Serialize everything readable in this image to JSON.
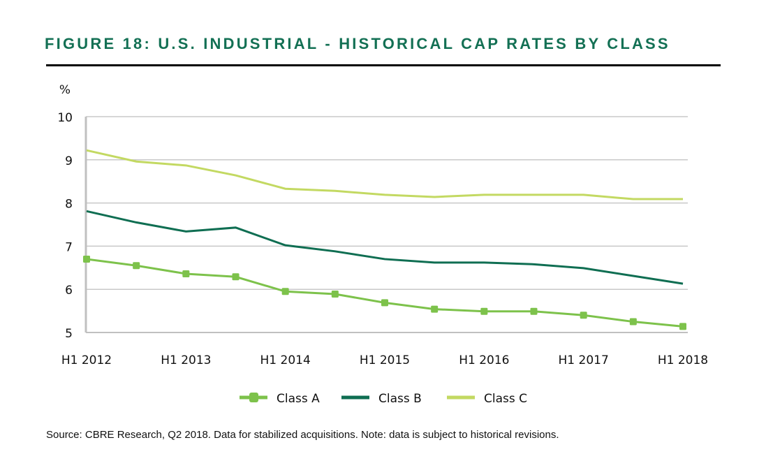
{
  "chart_data": {
    "type": "line",
    "title": "FIGURE 18: U.S. INDUSTRIAL - HISTORICAL CAP RATES BY CLASS",
    "ylabel": "%",
    "xlabel": "",
    "ylim": [
      5,
      10
    ],
    "yticks": [
      "5",
      "6",
      "7",
      "8",
      "9",
      "10"
    ],
    "grid": true,
    "legend": "bottom",
    "x": [
      "H1 2012",
      "H2 2012",
      "H1 2013",
      "H2 2013",
      "H1 2014",
      "H2 2014",
      "H1 2015",
      "H2 2015",
      "H1 2016",
      "H2 2016",
      "H1 2017",
      "H2 2017",
      "H1 2018"
    ],
    "xtick_labels": [
      "H1 2012",
      "H1 2013",
      "H1 2014",
      "H1 2015",
      "H1 2016",
      "H1 2017",
      "H1 2018"
    ],
    "series": [
      {
        "name": "Class A",
        "color": "#7dc24b",
        "marker": "square",
        "values": [
          6.7,
          6.55,
          6.36,
          6.29,
          5.95,
          5.89,
          5.69,
          5.54,
          5.49,
          5.49,
          5.4,
          5.25,
          5.14
        ]
      },
      {
        "name": "Class B",
        "color": "#0f6e52",
        "marker": "none",
        "values": [
          7.81,
          7.55,
          7.34,
          7.43,
          7.02,
          6.88,
          6.7,
          6.62,
          6.62,
          6.58,
          6.49,
          6.31,
          6.13
        ]
      },
      {
        "name": "Class C",
        "color": "#c3d962",
        "marker": "none",
        "values": [
          9.22,
          8.96,
          8.87,
          8.64,
          8.33,
          8.28,
          8.19,
          8.14,
          8.19,
          8.19,
          8.19,
          8.09,
          8.09
        ]
      }
    ],
    "source": "Source: CBRE Research, Q2 2018. Data for stabilized acquisitions. Note: data is subject to historical revisions."
  }
}
